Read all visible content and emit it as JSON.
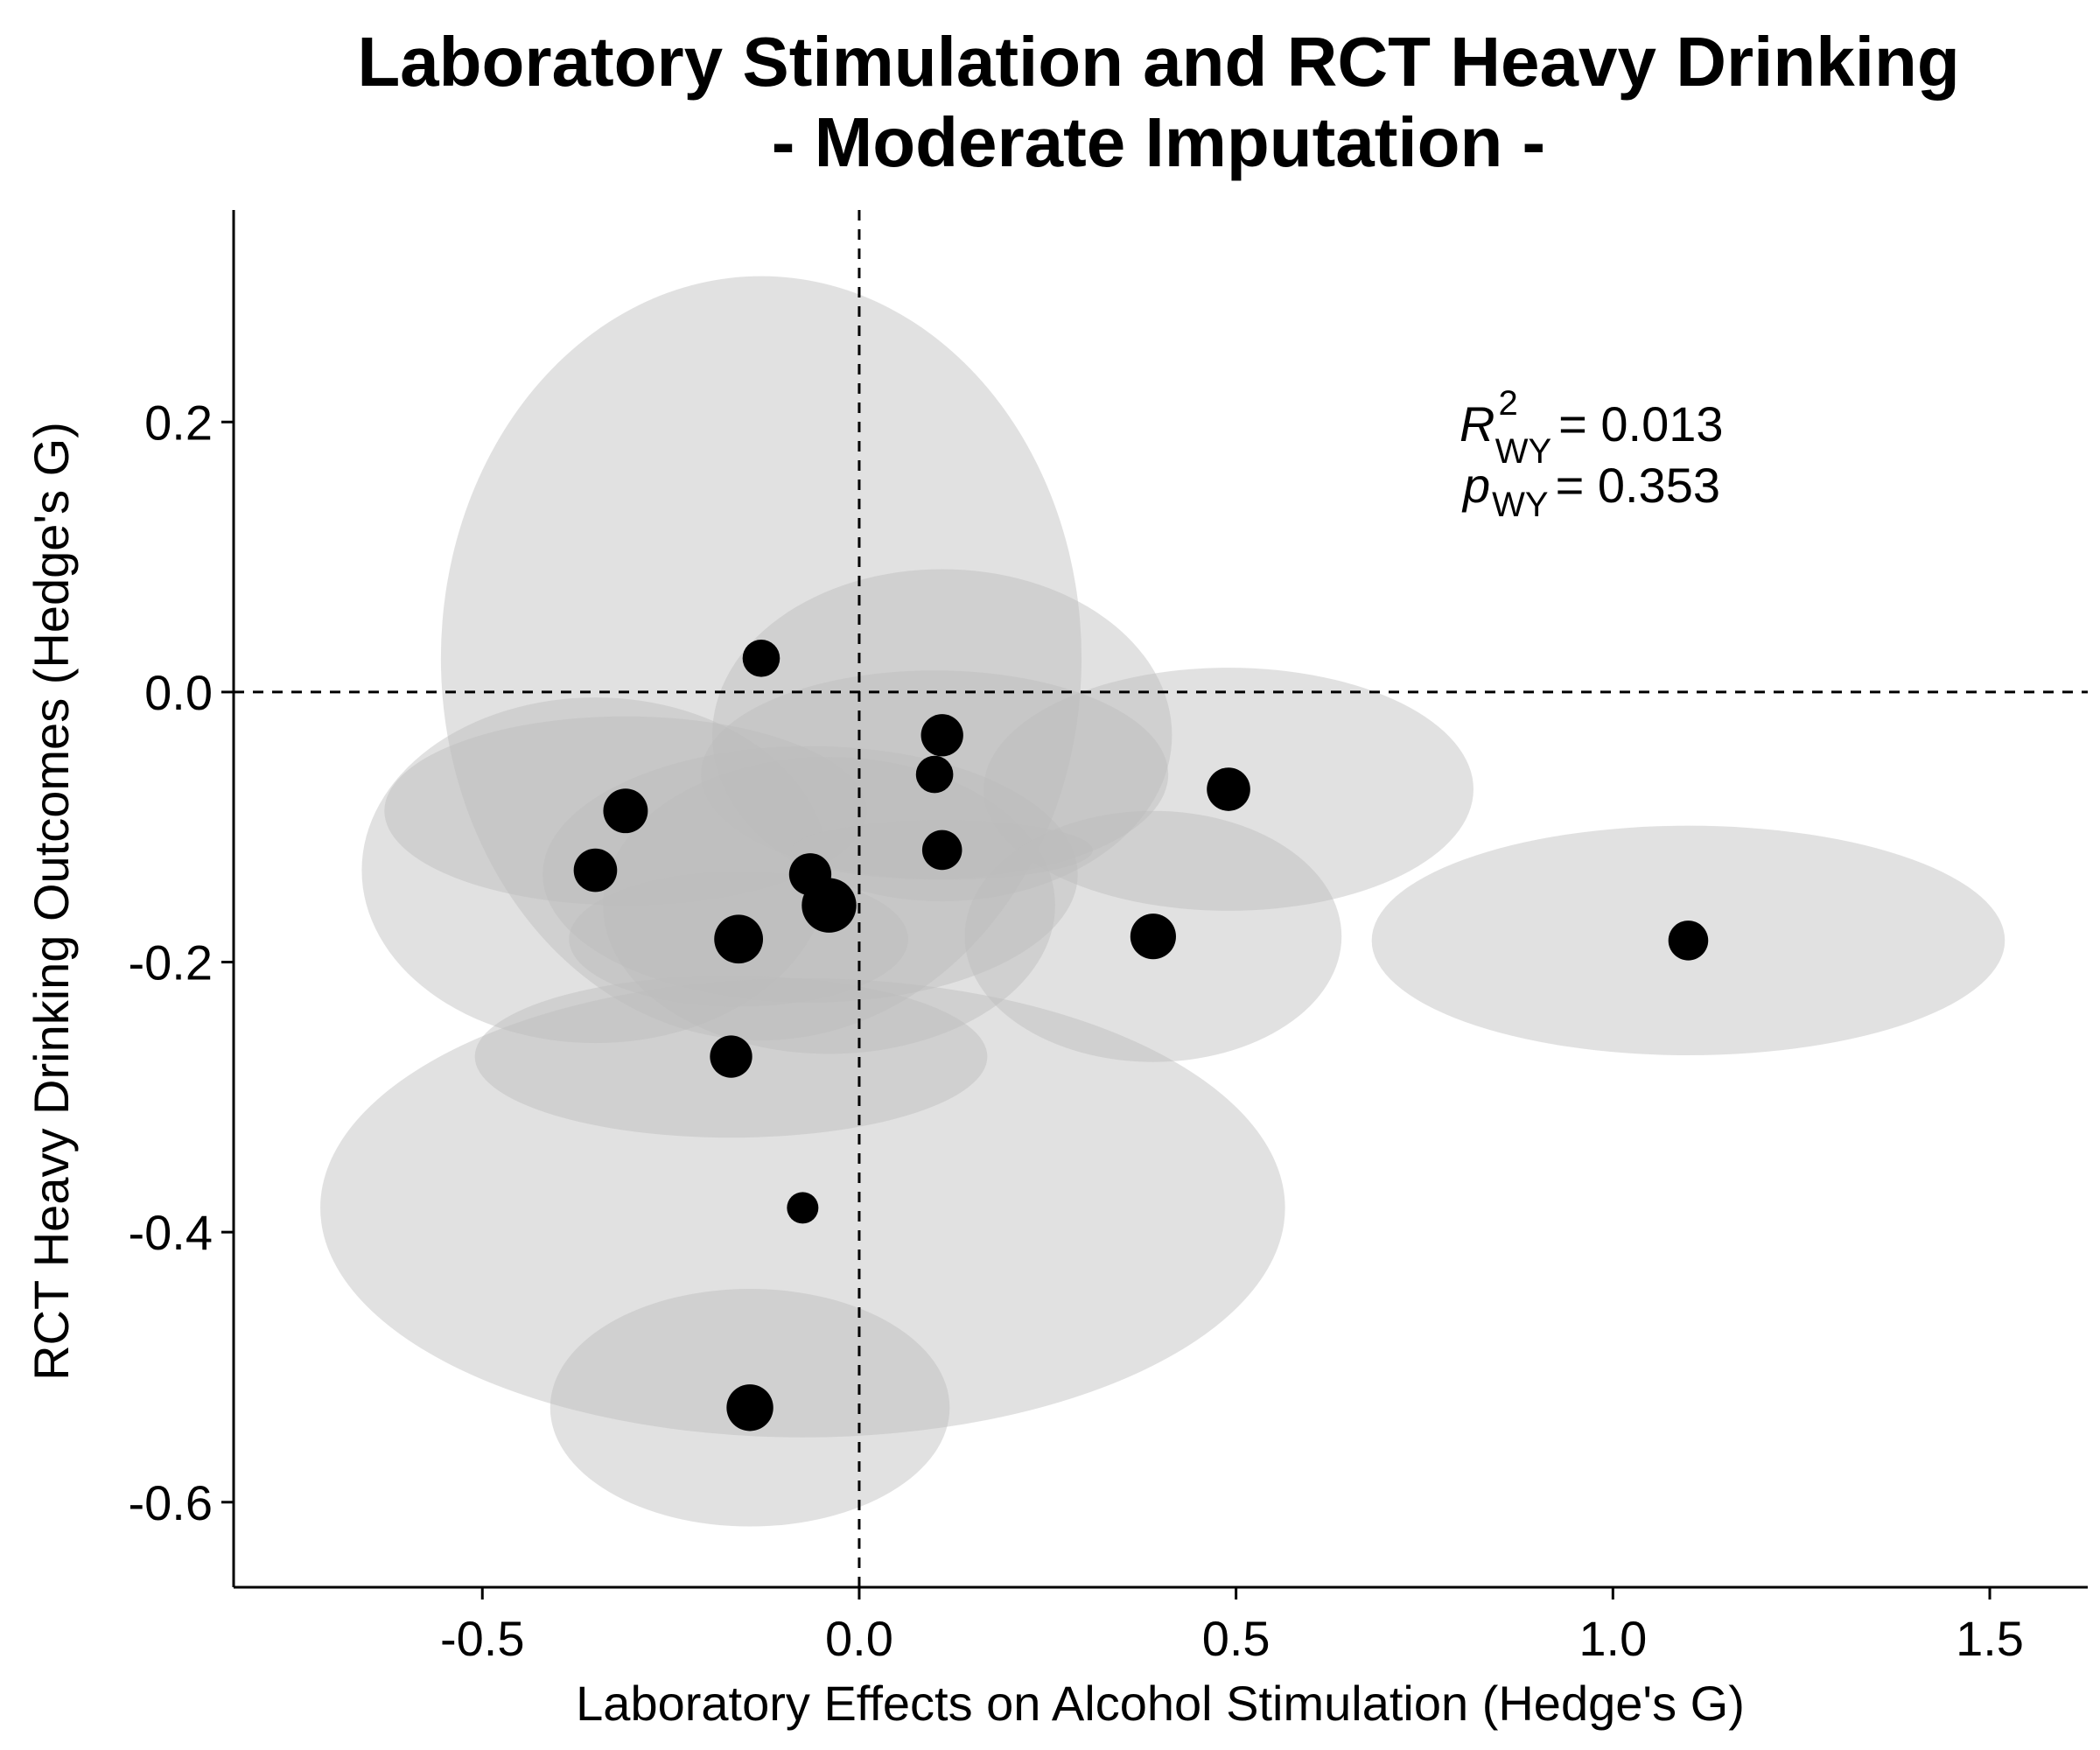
{
  "chart_data": {
    "type": "scatter",
    "title_line1": "Laboratory Stimulation and RCT Heavy Drinking",
    "title_line2": "- Moderate Imputation -",
    "xlabel": "Laboratory Effects on Alcohol Stimulation (Hedge's G)",
    "ylabel": "RCT Heavy Drinking Outcomes (Hedge's G)",
    "xlim": [
      -0.83,
      1.63
    ],
    "ylim": [
      -0.663,
      0.357
    ],
    "x_ticks": [
      {
        "value": -0.5,
        "label": "-0.5"
      },
      {
        "value": 0.0,
        "label": "0.0"
      },
      {
        "value": 0.5,
        "label": "0.5"
      },
      {
        "value": 1.0,
        "label": "1.0"
      },
      {
        "value": 1.5,
        "label": "1.5"
      }
    ],
    "y_ticks": [
      {
        "value": 0.2,
        "label": "0.2"
      },
      {
        "value": 0.0,
        "label": "0.0"
      },
      {
        "value": -0.2,
        "label": "-0.2"
      },
      {
        "value": -0.4,
        "label": "-0.4"
      },
      {
        "value": -0.6,
        "label": "-0.6"
      }
    ],
    "reference_lines": {
      "x": 0.0,
      "y": 0.0,
      "style": "dashed"
    },
    "grid": false,
    "annotation": {
      "r_label": "R",
      "r_sup": "2",
      "r_sub": "WY",
      "r_value": "= 0.013",
      "p_label": "p",
      "p_sub": "WY",
      "p_value": "= 0.353"
    },
    "colors": {
      "point": "#000000",
      "ellipse": "#bdbdbd",
      "reference_line": "#000000",
      "axis": "#000000"
    },
    "ellipse_opacity": 0.45,
    "points": [
      {
        "x": -0.13,
        "y": 0.025,
        "point_size": 1.4,
        "x_err": 0.425,
        "y_err": 0.283
      },
      {
        "x": -0.31,
        "y": -0.088,
        "point_size": 2.0,
        "x_err": 0.32,
        "y_err": 0.07
      },
      {
        "x": -0.35,
        "y": -0.132,
        "point_size": 1.9,
        "x_err": 0.31,
        "y_err": 0.128
      },
      {
        "x": -0.065,
        "y": -0.135,
        "point_size": 1.8,
        "x_err": 0.355,
        "y_err": 0.095
      },
      {
        "x": -0.04,
        "y": -0.158,
        "point_size": 3.0,
        "x_err": 0.3,
        "y_err": 0.11
      },
      {
        "x": -0.16,
        "y": -0.183,
        "point_size": 2.4,
        "x_err": 0.225,
        "y_err": 0.05
      },
      {
        "x": -0.17,
        "y": -0.27,
        "point_size": 1.8,
        "x_err": 0.34,
        "y_err": 0.06
      },
      {
        "x": -0.075,
        "y": -0.382,
        "point_size": 1.0,
        "x_err": 0.64,
        "y_err": 0.17
      },
      {
        "x": -0.145,
        "y": -0.53,
        "point_size": 2.2,
        "x_err": 0.265,
        "y_err": 0.088
      },
      {
        "x": 0.11,
        "y": -0.032,
        "point_size": 1.8,
        "x_err": 0.305,
        "y_err": 0.123
      },
      {
        "x": 0.1,
        "y": -0.061,
        "point_size": 1.4,
        "x_err": 0.31,
        "y_err": 0.077
      },
      {
        "x": 0.11,
        "y": -0.117,
        "point_size": 1.6,
        "x_err": 0.2,
        "y_err": 0.022
      },
      {
        "x": 0.49,
        "y": -0.072,
        "point_size": 1.9,
        "x_err": 0.325,
        "y_err": 0.09
      },
      {
        "x": 0.39,
        "y": -0.181,
        "point_size": 2.1,
        "x_err": 0.25,
        "y_err": 0.093
      },
      {
        "x": 1.1,
        "y": -0.184,
        "point_size": 1.6,
        "x_err": 0.42,
        "y_err": 0.085
      }
    ]
  }
}
